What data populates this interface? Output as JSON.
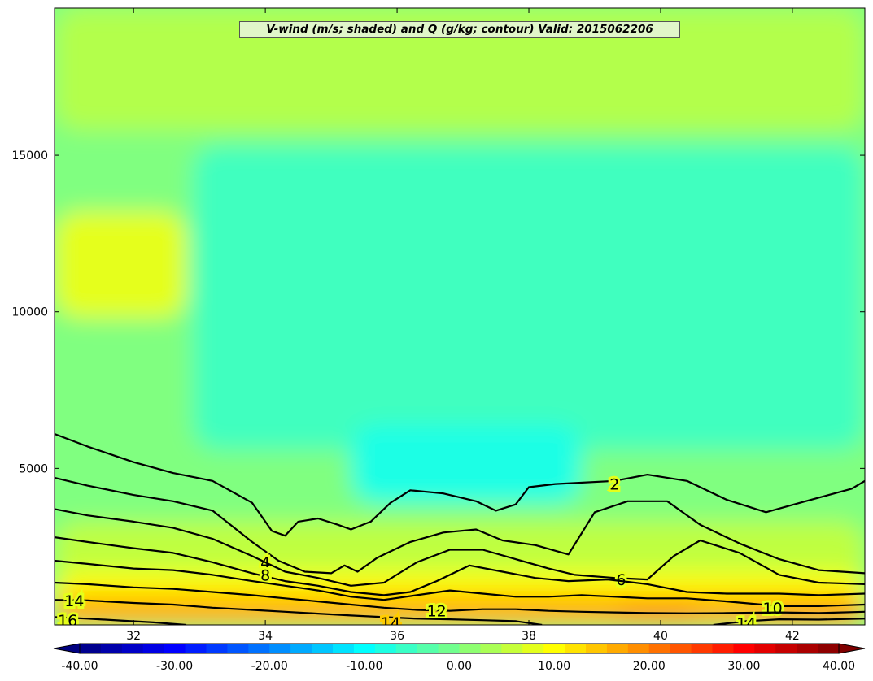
{
  "chart_data": {
    "type": "heatmap",
    "title": "V-wind (m/s; shaded) and Q (g/kg; contour) Valid: 2015062206",
    "xlabel": "",
    "ylabel": "",
    "xlim": [
      30.8,
      43.1
    ],
    "ylim": [
      0,
      19700
    ],
    "x_ticks": [
      32,
      34,
      36,
      38,
      40,
      42
    ],
    "y_ticks": [
      5000,
      10000,
      15000
    ],
    "shaded_variable": "V-wind (m/s)",
    "contour_variable": "Q (g/kg)",
    "colorbar": {
      "colormap": "jet",
      "min": -40.0,
      "max": 40.0,
      "extend": "both",
      "tick_values": [
        -40.0,
        -30.0,
        -20.0,
        -10.0,
        0.0,
        10.0,
        20.0,
        30.0,
        40.0
      ],
      "tick_labels": [
        "-40.00",
        "-30.00",
        "-20.00",
        "-10.00",
        "0.00",
        "10.00",
        "20.00",
        "30.00",
        "40.00"
      ]
    },
    "shading_regions": [
      {
        "xmin": 30.8,
        "xmax": 43.1,
        "ymin": 0,
        "ymax": 19700,
        "value": 0
      },
      {
        "xmin": 30.8,
        "xmax": 43.1,
        "ymin": 15800,
        "ymax": 19700,
        "value": 4
      },
      {
        "xmin": 30.8,
        "xmax": 32.8,
        "ymin": 9800,
        "ymax": 13200,
        "value": 8
      },
      {
        "xmin": 32.9,
        "xmax": 43.1,
        "ymin": 5600,
        "ymax": 15300,
        "value": -5
      },
      {
        "xmin": 35.3,
        "xmax": 38.8,
        "ymin": 3900,
        "ymax": 6400,
        "value": -8
      },
      {
        "xmin": 30.8,
        "xmax": 43.1,
        "ymin": 0,
        "ymax": 3300,
        "value": 5
      },
      {
        "xmin": 30.8,
        "xmax": 43.1,
        "ymin": 0,
        "ymax": 1700,
        "value": 10
      },
      {
        "xmin": 30.8,
        "xmax": 43.1,
        "ymin": 0,
        "ymax": 1100,
        "value": 14
      },
      {
        "xmin": 30.8,
        "xmax": 43.1,
        "ymin": 0,
        "ymax": 650,
        "value": 17
      },
      {
        "xmin": 39.3,
        "xmax": 40.6,
        "ymin": 150,
        "ymax": 650,
        "value": 20
      },
      {
        "xmin": 41.6,
        "xmax": 43.1,
        "ymin": 100,
        "ymax": 550,
        "value": 20
      }
    ],
    "contours": [
      {
        "level": 2,
        "label": "2",
        "label_at": [
          39.3,
          4500
        ],
        "points": [
          [
            30.8,
            6100
          ],
          [
            31.3,
            5700
          ],
          [
            32.0,
            5200
          ],
          [
            32.6,
            4850
          ],
          [
            33.2,
            4600
          ],
          [
            33.8,
            3900
          ],
          [
            34.1,
            3000
          ],
          [
            34.3,
            2850
          ],
          [
            34.5,
            3300
          ],
          [
            34.8,
            3400
          ],
          [
            35.1,
            3200
          ],
          [
            35.3,
            3050
          ],
          [
            35.6,
            3300
          ],
          [
            35.9,
            3900
          ],
          [
            36.2,
            4300
          ],
          [
            36.7,
            4200
          ],
          [
            37.2,
            3950
          ],
          [
            37.5,
            3650
          ],
          [
            37.8,
            3850
          ],
          [
            38.0,
            4400
          ],
          [
            38.4,
            4500
          ],
          [
            39.3,
            4600
          ],
          [
            39.8,
            4800
          ],
          [
            40.4,
            4600
          ],
          [
            41.0,
            4000
          ],
          [
            41.6,
            3600
          ],
          [
            42.2,
            3950
          ],
          [
            42.9,
            4350
          ],
          [
            43.1,
            4600
          ]
        ]
      },
      {
        "level": 4,
        "label": "4",
        "label_at": [
          34.0,
          2000
        ],
        "points": [
          [
            30.8,
            4700
          ],
          [
            31.3,
            4450
          ],
          [
            32.0,
            4150
          ],
          [
            32.6,
            3950
          ],
          [
            33.2,
            3650
          ],
          [
            33.8,
            2650
          ],
          [
            34.2,
            2050
          ],
          [
            34.6,
            1700
          ],
          [
            35.0,
            1650
          ],
          [
            35.2,
            1900
          ],
          [
            35.4,
            1700
          ],
          [
            35.7,
            2150
          ],
          [
            36.2,
            2650
          ],
          [
            36.7,
            2950
          ],
          [
            37.2,
            3050
          ],
          [
            37.6,
            2700
          ],
          [
            38.1,
            2550
          ],
          [
            38.6,
            2250
          ],
          [
            39.0,
            3600
          ],
          [
            39.5,
            3950
          ],
          [
            40.1,
            3950
          ],
          [
            40.6,
            3200
          ],
          [
            41.2,
            2600
          ],
          [
            41.8,
            2100
          ],
          [
            42.4,
            1750
          ],
          [
            43.1,
            1650
          ]
        ]
      },
      {
        "level": 6,
        "label": "6",
        "label_at": [
          39.4,
          1450
        ],
        "points": [
          [
            30.8,
            3700
          ],
          [
            31.3,
            3500
          ],
          [
            32.0,
            3300
          ],
          [
            32.6,
            3100
          ],
          [
            33.2,
            2750
          ],
          [
            33.8,
            2200
          ],
          [
            34.3,
            1700
          ],
          [
            34.8,
            1500
          ],
          [
            35.3,
            1250
          ],
          [
            35.8,
            1350
          ],
          [
            36.3,
            2000
          ],
          [
            36.8,
            2400
          ],
          [
            37.3,
            2400
          ],
          [
            37.8,
            2100
          ],
          [
            38.3,
            1800
          ],
          [
            38.7,
            1600
          ],
          [
            39.3,
            1500
          ],
          [
            39.8,
            1450
          ],
          [
            40.2,
            2200
          ],
          [
            40.6,
            2700
          ],
          [
            41.2,
            2300
          ],
          [
            41.8,
            1600
          ],
          [
            42.4,
            1350
          ],
          [
            43.1,
            1300
          ]
        ]
      },
      {
        "level": 8,
        "label": "8",
        "label_at": [
          34.0,
          1600
        ],
        "points": [
          [
            30.8,
            2800
          ],
          [
            31.3,
            2650
          ],
          [
            32.0,
            2450
          ],
          [
            32.6,
            2300
          ],
          [
            33.2,
            2000
          ],
          [
            33.8,
            1650
          ],
          [
            34.3,
            1400
          ],
          [
            34.8,
            1250
          ],
          [
            35.3,
            1050
          ],
          [
            35.8,
            950
          ],
          [
            36.2,
            1050
          ],
          [
            36.6,
            1400
          ],
          [
            37.1,
            1900
          ],
          [
            37.6,
            1700
          ],
          [
            38.1,
            1500
          ],
          [
            38.6,
            1400
          ],
          [
            39.2,
            1450
          ],
          [
            39.8,
            1300
          ],
          [
            40.4,
            1050
          ],
          [
            41.0,
            1000
          ],
          [
            41.8,
            1000
          ],
          [
            42.4,
            950
          ],
          [
            43.1,
            1000
          ]
        ]
      },
      {
        "level": 10,
        "label": "10",
        "label_at": [
          41.7,
          550
        ],
        "points": [
          [
            30.8,
            2050
          ],
          [
            31.3,
            1950
          ],
          [
            32.0,
            1800
          ],
          [
            32.6,
            1750
          ],
          [
            33.2,
            1600
          ],
          [
            33.8,
            1400
          ],
          [
            34.3,
            1250
          ],
          [
            34.8,
            1100
          ],
          [
            35.3,
            900
          ],
          [
            35.8,
            800
          ],
          [
            36.3,
            950
          ],
          [
            36.8,
            1100
          ],
          [
            37.3,
            1000
          ],
          [
            37.8,
            900
          ],
          [
            38.3,
            900
          ],
          [
            38.8,
            950
          ],
          [
            39.3,
            900
          ],
          [
            39.8,
            850
          ],
          [
            40.4,
            850
          ],
          [
            41.0,
            750
          ],
          [
            41.8,
            600
          ],
          [
            42.4,
            600
          ],
          [
            43.1,
            650
          ]
        ]
      },
      {
        "level": 12,
        "label": "12",
        "label_at": [
          36.6,
          450
        ],
        "points": [
          [
            30.8,
            1350
          ],
          [
            31.3,
            1300
          ],
          [
            32.0,
            1200
          ],
          [
            32.6,
            1150
          ],
          [
            33.2,
            1050
          ],
          [
            33.8,
            950
          ],
          [
            34.3,
            850
          ],
          [
            34.8,
            750
          ],
          [
            35.3,
            650
          ],
          [
            35.8,
            550
          ],
          [
            36.3,
            480
          ],
          [
            36.8,
            450
          ],
          [
            37.3,
            500
          ],
          [
            37.8,
            500
          ],
          [
            38.3,
            450
          ],
          [
            38.8,
            420
          ],
          [
            39.3,
            400
          ],
          [
            39.8,
            380
          ],
          [
            40.4,
            370
          ],
          [
            41.0,
            380
          ],
          [
            41.8,
            400
          ],
          [
            42.4,
            380
          ],
          [
            43.1,
            420
          ]
        ]
      },
      {
        "level": 14,
        "label": "14",
        "label_at": [
          31.1,
          780
        ],
        "points": [
          [
            30.8,
            800
          ],
          [
            31.3,
            780
          ],
          [
            32.0,
            700
          ],
          [
            32.6,
            650
          ],
          [
            33.2,
            550
          ],
          [
            33.8,
            480
          ],
          [
            34.3,
            420
          ],
          [
            34.8,
            360
          ],
          [
            35.3,
            300
          ],
          [
            35.8,
            250
          ],
          [
            36.3,
            200
          ],
          [
            36.8,
            180
          ],
          [
            37.3,
            150
          ],
          [
            37.8,
            120
          ],
          [
            38.2,
            0
          ]
        ]
      },
      {
        "level": 14,
        "label": "14",
        "label_at": [
          41.3,
          60
        ],
        "points": [
          [
            40.8,
            0
          ],
          [
            41.3,
            120
          ],
          [
            41.8,
            180
          ],
          [
            42.4,
            170
          ],
          [
            43.1,
            200
          ]
        ]
      },
      {
        "level": 16,
        "label": "16",
        "label_at": [
          31.0,
          150
        ],
        "points": [
          [
            30.8,
            250
          ],
          [
            31.3,
            200
          ],
          [
            31.8,
            140
          ],
          [
            32.3,
            80
          ],
          [
            32.8,
            0
          ]
        ]
      }
    ],
    "extra_contour_labels": [
      {
        "label": "14",
        "at": [
          35.9,
          80
        ]
      }
    ]
  }
}
